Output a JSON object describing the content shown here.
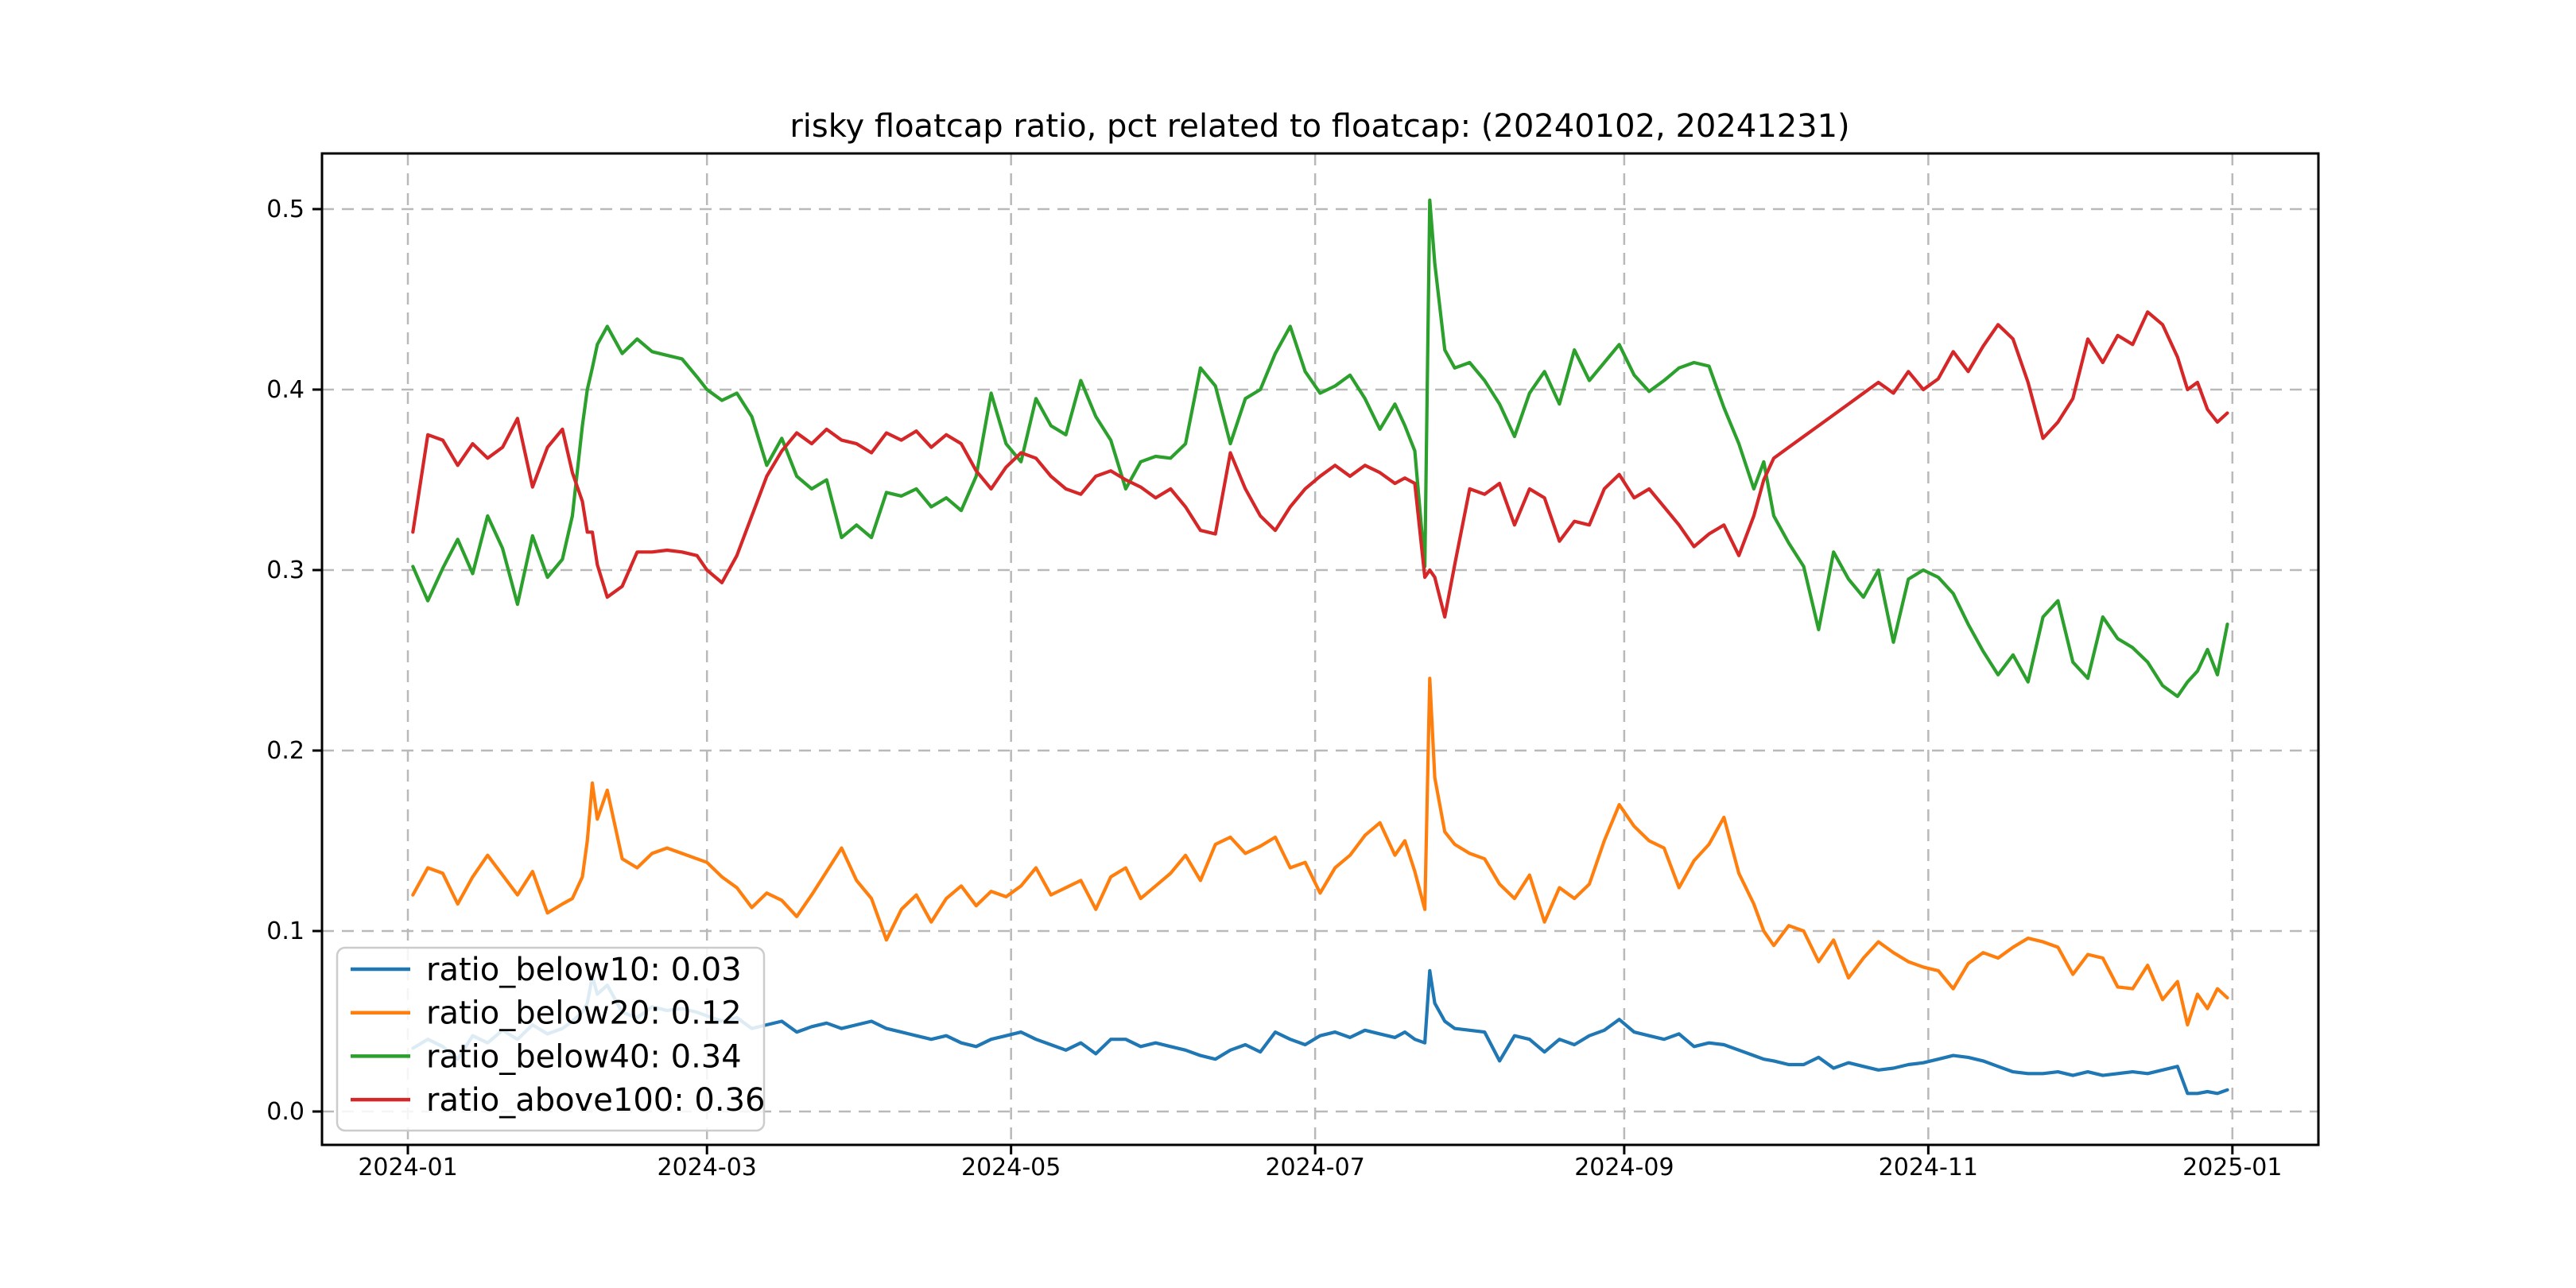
{
  "title": "risky floatcap ratio, pct related to floatcap: (20240102, 20241231)",
  "colors": {
    "background": "#ffffff",
    "axis": "#000000",
    "grid": "#b9b9b9",
    "legend_border": "#cccccc",
    "series_blue": "#1f77b4",
    "series_orange": "#ff7f0e",
    "series_green": "#2ca02c",
    "series_red": "#d62728"
  },
  "chart_data": {
    "type": "line",
    "title": "risky floatcap ratio, pct related to floatcap: (20240102, 20241231)",
    "xlabel": "",
    "ylabel": "",
    "grid": true,
    "grid_style": "dashed",
    "legend_position": "lower left",
    "x_unit": "days since 2024-01-01",
    "xlim_days": [
      -17.2,
      383.3
    ],
    "ylim": [
      -0.019,
      0.531
    ],
    "xticks": [
      {
        "day": 0,
        "label": "2024-01"
      },
      {
        "day": 60,
        "label": "2024-03"
      },
      {
        "day": 121,
        "label": "2024-05"
      },
      {
        "day": 182,
        "label": "2024-07"
      },
      {
        "day": 244,
        "label": "2024-09"
      },
      {
        "day": 305,
        "label": "2024-11"
      },
      {
        "day": 366,
        "label": "2025-01"
      }
    ],
    "yticks": [
      {
        "value": 0.0,
        "label": "0.0"
      },
      {
        "value": 0.1,
        "label": "0.1"
      },
      {
        "value": 0.2,
        "label": "0.2"
      },
      {
        "value": 0.3,
        "label": "0.3"
      },
      {
        "value": 0.4,
        "label": "0.4"
      },
      {
        "value": 0.5,
        "label": "0.5"
      }
    ],
    "x": [
      1,
      4,
      7,
      10,
      13,
      16,
      19,
      22,
      25,
      28,
      31,
      33,
      35,
      36,
      37,
      38,
      40,
      43,
      46,
      49,
      52,
      55,
      58,
      60,
      63,
      66,
      69,
      72,
      75,
      78,
      81,
      84,
      87,
      90,
      93,
      96,
      99,
      102,
      105,
      108,
      111,
      114,
      117,
      120,
      123,
      126,
      129,
      132,
      135,
      138,
      141,
      144,
      147,
      150,
      153,
      156,
      159,
      162,
      165,
      168,
      171,
      174,
      177,
      180,
      183,
      186,
      189,
      192,
      195,
      198,
      200,
      202,
      204,
      205,
      206,
      208,
      210,
      213,
      216,
      219,
      222,
      225,
      228,
      231,
      234,
      237,
      240,
      243,
      246,
      249,
      252,
      255,
      258,
      261,
      264,
      267,
      270,
      272,
      274,
      277,
      280,
      283,
      286,
      289,
      292,
      295,
      298,
      301,
      304,
      307,
      310,
      313,
      316,
      319,
      322,
      325,
      328,
      331,
      334,
      337,
      340,
      343,
      346,
      349,
      352,
      355,
      357,
      359,
      361,
      363,
      365
    ],
    "series": [
      {
        "name": "ratio_below10",
        "legend_label": "ratio_below10: 0.03",
        "legend_value": 0.03,
        "color": "#1f77b4",
        "values": [
          0.035,
          0.04,
          0.036,
          0.029,
          0.042,
          0.038,
          0.045,
          0.04,
          0.048,
          0.043,
          0.046,
          0.05,
          0.055,
          0.06,
          0.075,
          0.065,
          0.07,
          0.055,
          0.052,
          0.058,
          0.056,
          0.057,
          0.055,
          0.053,
          0.05,
          0.052,
          0.046,
          0.048,
          0.05,
          0.044,
          0.047,
          0.049,
          0.046,
          0.048,
          0.05,
          0.046,
          0.044,
          0.042,
          0.04,
          0.042,
          0.038,
          0.036,
          0.04,
          0.042,
          0.044,
          0.04,
          0.037,
          0.034,
          0.038,
          0.032,
          0.04,
          0.04,
          0.036,
          0.038,
          0.036,
          0.034,
          0.031,
          0.029,
          0.034,
          0.037,
          0.033,
          0.044,
          0.04,
          0.037,
          0.042,
          0.044,
          0.041,
          0.045,
          0.043,
          0.041,
          0.044,
          0.04,
          0.038,
          0.078,
          0.06,
          0.05,
          0.046,
          0.045,
          0.044,
          0.028,
          0.042,
          0.04,
          0.033,
          0.04,
          0.037,
          0.042,
          0.045,
          0.051,
          0.044,
          0.042,
          0.04,
          0.043,
          0.036,
          0.038,
          0.037,
          0.034,
          0.031,
          0.029,
          0.028,
          0.026,
          0.026,
          0.03,
          0.024,
          0.027,
          0.025,
          0.023,
          0.024,
          0.026,
          0.027,
          0.029,
          0.031,
          0.03,
          0.028,
          0.025,
          0.022,
          0.021,
          0.021,
          0.022,
          0.02,
          0.022,
          0.02,
          0.021,
          0.022,
          0.021,
          0.023,
          0.025,
          0.01,
          0.01,
          0.011,
          0.01,
          0.012
        ]
      },
      {
        "name": "ratio_below20",
        "legend_label": "ratio_below20: 0.12",
        "legend_value": 0.12,
        "color": "#ff7f0e",
        "values": [
          0.12,
          0.135,
          0.132,
          0.115,
          0.13,
          0.142,
          0.131,
          0.12,
          0.133,
          0.11,
          0.115,
          0.118,
          0.13,
          0.15,
          0.182,
          0.162,
          0.178,
          0.14,
          0.135,
          0.143,
          0.146,
          0.143,
          0.14,
          0.138,
          0.13,
          0.124,
          0.113,
          0.121,
          0.117,
          0.108,
          0.12,
          0.133,
          0.146,
          0.128,
          0.118,
          0.095,
          0.112,
          0.12,
          0.105,
          0.118,
          0.125,
          0.114,
          0.122,
          0.119,
          0.125,
          0.135,
          0.12,
          0.124,
          0.128,
          0.112,
          0.13,
          0.135,
          0.118,
          0.125,
          0.132,
          0.142,
          0.128,
          0.148,
          0.152,
          0.143,
          0.147,
          0.152,
          0.135,
          0.138,
          0.121,
          0.135,
          0.142,
          0.153,
          0.16,
          0.142,
          0.15,
          0.133,
          0.112,
          0.24,
          0.185,
          0.155,
          0.148,
          0.143,
          0.14,
          0.126,
          0.118,
          0.131,
          0.105,
          0.124,
          0.118,
          0.126,
          0.15,
          0.17,
          0.158,
          0.15,
          0.146,
          0.124,
          0.139,
          0.148,
          0.163,
          0.132,
          0.115,
          0.1,
          0.092,
          0.103,
          0.1,
          0.083,
          0.095,
          0.074,
          0.085,
          0.094,
          0.088,
          0.083,
          0.08,
          0.078,
          0.068,
          0.082,
          0.088,
          0.085,
          0.091,
          0.096,
          0.094,
          0.091,
          0.076,
          0.087,
          0.085,
          0.069,
          0.068,
          0.081,
          0.062,
          0.072,
          0.048,
          0.065,
          0.057,
          0.068,
          0.063
        ]
      },
      {
        "name": "ratio_below40",
        "legend_label": "ratio_below40: 0.34",
        "legend_value": 0.34,
        "color": "#2ca02c",
        "values": [
          0.302,
          0.283,
          0.301,
          0.317,
          0.298,
          0.33,
          0.312,
          0.281,
          0.319,
          0.296,
          0.306,
          0.33,
          0.38,
          0.4,
          0.412,
          0.425,
          0.435,
          0.42,
          0.428,
          0.421,
          0.419,
          0.417,
          0.407,
          0.4,
          0.394,
          0.398,
          0.385,
          0.358,
          0.373,
          0.352,
          0.345,
          0.35,
          0.318,
          0.325,
          0.318,
          0.343,
          0.341,
          0.345,
          0.335,
          0.34,
          0.333,
          0.352,
          0.398,
          0.37,
          0.36,
          0.395,
          0.38,
          0.375,
          0.405,
          0.385,
          0.372,
          0.345,
          0.36,
          0.363,
          0.362,
          0.37,
          0.412,
          0.402,
          0.37,
          0.395,
          0.4,
          0.42,
          0.435,
          0.41,
          0.398,
          0.402,
          0.408,
          0.395,
          0.378,
          0.392,
          0.38,
          0.366,
          0.302,
          0.505,
          0.47,
          0.422,
          0.412,
          0.415,
          0.405,
          0.392,
          0.374,
          0.398,
          0.41,
          0.392,
          0.422,
          0.405,
          0.415,
          0.425,
          0.408,
          0.399,
          0.405,
          0.412,
          0.415,
          0.413,
          0.39,
          0.37,
          0.345,
          0.36,
          0.33,
          0.315,
          0.302,
          0.267,
          0.31,
          0.295,
          0.285,
          0.3,
          0.26,
          0.295,
          0.3,
          0.296,
          0.287,
          0.27,
          0.255,
          0.242,
          0.253,
          0.238,
          0.274,
          0.283,
          0.249,
          0.24,
          0.274,
          0.262,
          0.257,
          0.249,
          0.236,
          0.23,
          0.238,
          0.244,
          0.256,
          0.242,
          0.27
        ]
      },
      {
        "name": "ratio_above100",
        "legend_label": "ratio_above100: 0.36",
        "legend_value": 0.36,
        "color": "#d62728",
        "values": [
          0.321,
          0.375,
          0.372,
          0.358,
          0.37,
          0.362,
          0.368,
          0.384,
          0.346,
          0.368,
          0.378,
          0.354,
          0.338,
          0.321,
          0.321,
          0.303,
          0.285,
          0.291,
          0.31,
          0.31,
          0.311,
          0.31,
          0.308,
          0.3,
          0.293,
          0.308,
          0.33,
          0.352,
          0.366,
          0.376,
          0.37,
          0.378,
          0.372,
          0.37,
          0.365,
          0.376,
          0.372,
          0.377,
          0.368,
          0.375,
          0.37,
          0.355,
          0.345,
          0.357,
          0.365,
          0.362,
          0.352,
          0.345,
          0.342,
          0.352,
          0.355,
          0.35,
          0.346,
          0.34,
          0.345,
          0.335,
          0.322,
          0.32,
          0.365,
          0.345,
          0.33,
          0.322,
          0.335,
          0.345,
          0.352,
          0.358,
          0.352,
          0.358,
          0.354,
          0.348,
          0.351,
          0.348,
          0.296,
          0.3,
          0.296,
          0.274,
          0.303,
          0.345,
          0.342,
          0.348,
          0.325,
          0.345,
          0.34,
          0.316,
          0.327,
          0.325,
          0.345,
          0.353,
          0.34,
          0.345,
          0.335,
          0.325,
          0.313,
          0.32,
          0.325,
          0.308,
          0.33,
          0.35,
          0.362,
          0.368,
          0.374,
          0.38,
          0.386,
          0.392,
          0.398,
          0.404,
          0.398,
          0.41,
          0.4,
          0.406,
          0.421,
          0.41,
          0.424,
          0.436,
          0.428,
          0.404,
          0.373,
          0.382,
          0.395,
          0.428,
          0.415,
          0.43,
          0.425,
          0.443,
          0.436,
          0.418,
          0.4,
          0.404,
          0.389,
          0.382,
          0.387
        ]
      }
    ]
  }
}
